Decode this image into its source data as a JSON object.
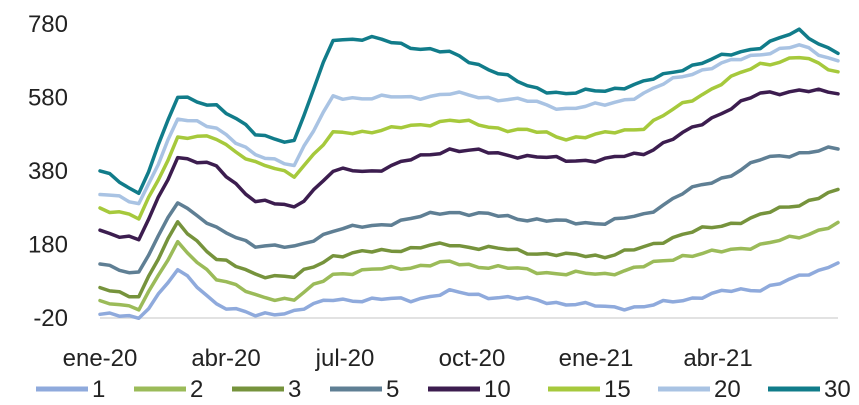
{
  "chart_data": {
    "type": "line",
    "x_tick_labels": [
      "ene-20",
      "abr-20",
      "jul-20",
      "oct-20",
      "ene-21",
      "abr-21"
    ],
    "x": [
      "ene-20",
      "feb-20",
      "mar-20",
      "abr-20",
      "may-20",
      "jun-20",
      "jul-20",
      "ago-20",
      "sep-20",
      "oct-20",
      "nov-20",
      "dic-20",
      "ene-21",
      "feb-21",
      "mar-21",
      "abr-21",
      "may-21",
      "jun-21",
      "jul-21",
      "ago-21"
    ],
    "y_ticks": [
      780,
      580,
      380,
      180,
      -20
    ],
    "ylim": [
      -20,
      780
    ],
    "grid": false,
    "legend_position": "bottom",
    "series": [
      {
        "name": "1",
        "color": "#8FAADC",
        "values": [
          -10,
          -20,
          110,
          20,
          -15,
          0,
          30,
          30,
          30,
          50,
          40,
          30,
          20,
          10,
          10,
          30,
          50,
          60,
          90,
          130
        ]
      },
      {
        "name": "2",
        "color": "#9BBB59",
        "values": [
          20,
          10,
          180,
          90,
          40,
          30,
          100,
          110,
          120,
          130,
          120,
          110,
          100,
          100,
          120,
          150,
          160,
          180,
          200,
          240
        ]
      },
      {
        "name": "3",
        "color": "#76933C",
        "values": [
          60,
          40,
          240,
          140,
          100,
          90,
          150,
          160,
          170,
          180,
          170,
          160,
          150,
          150,
          170,
          210,
          230,
          260,
          290,
          330
        ]
      },
      {
        "name": "5",
        "color": "#5F7F94",
        "values": [
          130,
          100,
          300,
          220,
          180,
          170,
          220,
          230,
          250,
          270,
          260,
          250,
          240,
          240,
          260,
          320,
          360,
          410,
          430,
          440
        ]
      },
      {
        "name": "10",
        "color": "#3C1D4F",
        "values": [
          220,
          190,
          420,
          390,
          300,
          280,
          380,
          380,
          410,
          440,
          430,
          420,
          410,
          410,
          430,
          480,
          540,
          590,
          600,
          590
        ]
      },
      {
        "name": "15",
        "color": "#A6C93C",
        "values": [
          280,
          250,
          470,
          470,
          400,
          370,
          480,
          490,
          500,
          520,
          500,
          490,
          470,
          480,
          500,
          560,
          620,
          670,
          690,
          650
        ]
      },
      {
        "name": "20",
        "color": "#A9C3E3",
        "values": [
          320,
          290,
          520,
          500,
          420,
          400,
          580,
          580,
          580,
          590,
          580,
          570,
          550,
          560,
          590,
          640,
          670,
          700,
          720,
          680
        ]
      },
      {
        "name": "30",
        "color": "#117C8A",
        "values": [
          380,
          320,
          580,
          560,
          480,
          460,
          740,
          740,
          720,
          700,
          660,
          610,
          590,
          600,
          620,
          660,
          690,
          720,
          760,
          700
        ]
      }
    ]
  }
}
